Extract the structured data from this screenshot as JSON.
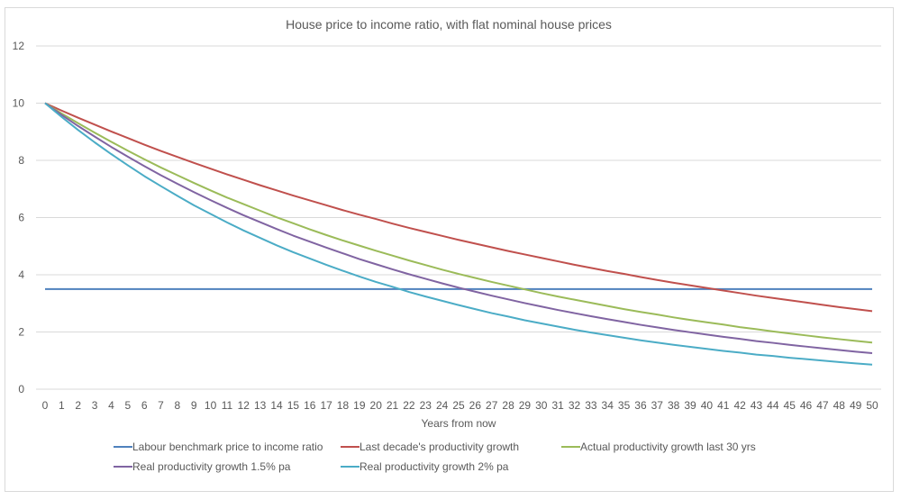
{
  "chart_data": {
    "type": "line",
    "title": "House price to income ratio, with flat nominal house prices",
    "xlabel": "Years from now",
    "ylabel": "",
    "ylim": [
      0,
      12
    ],
    "yticks": [
      0,
      2,
      4,
      6,
      8,
      10,
      12
    ],
    "grid": "horizontal",
    "legend": "bottom",
    "x": [
      0,
      1,
      2,
      3,
      4,
      5,
      6,
      7,
      8,
      9,
      10,
      11,
      12,
      13,
      14,
      15,
      16,
      17,
      18,
      19,
      20,
      21,
      22,
      23,
      24,
      25,
      26,
      27,
      28,
      29,
      30,
      31,
      32,
      33,
      34,
      35,
      36,
      37,
      38,
      39,
      40,
      41,
      42,
      43,
      44,
      45,
      46,
      47,
      48,
      49,
      50
    ],
    "series": [
      {
        "name": "Labour benchmark price to income ratio",
        "color": "#4f81bd",
        "values": [
          3.5,
          3.5,
          3.5,
          3.5,
          3.5,
          3.5,
          3.5,
          3.5,
          3.5,
          3.5,
          3.5,
          3.5,
          3.5,
          3.5,
          3.5,
          3.5,
          3.5,
          3.5,
          3.5,
          3.5,
          3.5,
          3.5,
          3.5,
          3.5,
          3.5,
          3.5,
          3.5,
          3.5,
          3.5,
          3.5,
          3.5,
          3.5,
          3.5,
          3.5,
          3.5,
          3.5,
          3.5,
          3.5,
          3.5,
          3.5,
          3.5,
          3.5,
          3.5,
          3.5,
          3.5,
          3.5,
          3.5,
          3.5,
          3.5,
          3.5,
          3.5
        ]
      },
      {
        "name": "Last decade's productivity growth",
        "color": "#c0504d",
        "values": [
          10.0,
          9.74,
          9.49,
          9.25,
          9.01,
          8.78,
          8.55,
          8.33,
          8.12,
          7.91,
          7.71,
          7.51,
          7.32,
          7.13,
          6.95,
          6.77,
          6.6,
          6.43,
          6.26,
          6.1,
          5.95,
          5.79,
          5.64,
          5.5,
          5.36,
          5.22,
          5.09,
          4.96,
          4.83,
          4.71,
          4.59,
          4.47,
          4.35,
          4.24,
          4.13,
          4.03,
          3.92,
          3.82,
          3.72,
          3.63,
          3.54,
          3.45,
          3.36,
          3.27,
          3.19,
          3.11,
          3.03,
          2.95,
          2.87,
          2.8,
          2.73
        ]
      },
      {
        "name": "Actual productivity growth last 30 yrs",
        "color": "#9bbb59",
        "values": [
          10.0,
          9.64,
          9.3,
          8.97,
          8.65,
          8.34,
          8.04,
          7.75,
          7.48,
          7.21,
          6.95,
          6.7,
          6.47,
          6.24,
          6.01,
          5.8,
          5.59,
          5.39,
          5.2,
          5.02,
          4.84,
          4.67,
          4.5,
          4.34,
          4.18,
          4.03,
          3.89,
          3.75,
          3.62,
          3.49,
          3.36,
          3.24,
          3.13,
          3.02,
          2.91,
          2.8,
          2.7,
          2.61,
          2.51,
          2.42,
          2.34,
          2.26,
          2.17,
          2.1,
          2.02,
          1.95,
          1.88,
          1.81,
          1.75,
          1.69,
          1.63
        ]
      },
      {
        "name": "Real productivity growth 1.5% pa",
        "color": "#8064a2",
        "values": [
          10.0,
          9.59,
          9.2,
          8.83,
          8.47,
          8.13,
          7.8,
          7.48,
          7.18,
          6.89,
          6.61,
          6.34,
          6.08,
          5.84,
          5.6,
          5.37,
          5.16,
          4.95,
          4.75,
          4.55,
          4.37,
          4.19,
          4.02,
          3.86,
          3.7,
          3.55,
          3.41,
          3.27,
          3.14,
          3.01,
          2.89,
          2.77,
          2.66,
          2.55,
          2.45,
          2.35,
          2.25,
          2.16,
          2.07,
          1.99,
          1.91,
          1.83,
          1.76,
          1.68,
          1.62,
          1.55,
          1.49,
          1.43,
          1.37,
          1.31,
          1.26
        ]
      },
      {
        "name": "Real productivity growth 2% pa",
        "color": "#4bacc6",
        "values": [
          10.0,
          9.52,
          9.06,
          8.63,
          8.22,
          7.83,
          7.45,
          7.1,
          6.76,
          6.43,
          6.13,
          5.83,
          5.55,
          5.29,
          5.03,
          4.79,
          4.57,
          4.35,
          4.14,
          3.94,
          3.75,
          3.58,
          3.4,
          3.24,
          3.09,
          2.94,
          2.8,
          2.66,
          2.54,
          2.41,
          2.3,
          2.19,
          2.08,
          1.98,
          1.89,
          1.8,
          1.71,
          1.63,
          1.55,
          1.48,
          1.41,
          1.34,
          1.28,
          1.21,
          1.16,
          1.1,
          1.05,
          1.0,
          0.95,
          0.9,
          0.86
        ]
      }
    ]
  }
}
